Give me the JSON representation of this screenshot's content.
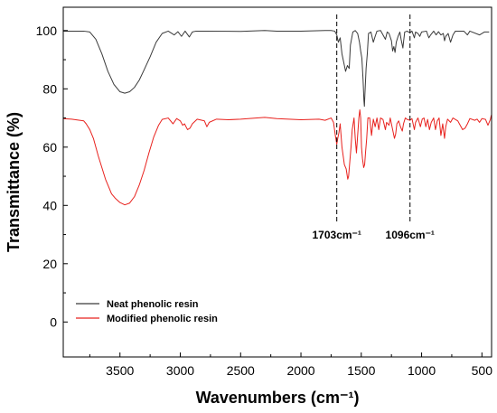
{
  "chart_data": {
    "type": "line",
    "xlabel": "Wavenumbers (cm⁻¹)",
    "ylabel": "Transmittance (%)",
    "xlim": [
      3970,
      420
    ],
    "ylim": [
      -12,
      108
    ],
    "x_reversed": true,
    "grid": false,
    "legend_position": "bottom-left",
    "x_ticks": [
      3500,
      3000,
      2500,
      2000,
      1500,
      1000,
      500
    ],
    "y_ticks": [
      0,
      20,
      40,
      60,
      80,
      100
    ],
    "x_tick_labels": [
      "3500",
      "3000",
      "2500",
      "2000",
      "1500",
      "1000",
      "500"
    ],
    "y_tick_labels": [
      "0",
      "20",
      "40",
      "60",
      "80",
      "100"
    ],
    "annotations": [
      {
        "x": 1703,
        "label": "1703cm⁻¹"
      },
      {
        "x": 1096,
        "label": "1096cm⁻¹"
      }
    ],
    "series": [
      {
        "name": "Neat phenolic resin",
        "color": "#3a3a3a",
        "points": [
          [
            3970,
            99.8
          ],
          [
            3800,
            99.8
          ],
          [
            3750,
            99.5
          ],
          [
            3700,
            97
          ],
          [
            3650,
            92
          ],
          [
            3600,
            86
          ],
          [
            3550,
            81.5
          ],
          [
            3500,
            79
          ],
          [
            3460,
            78.5
          ],
          [
            3420,
            79
          ],
          [
            3380,
            80.5
          ],
          [
            3340,
            83
          ],
          [
            3300,
            86.5
          ],
          [
            3250,
            91
          ],
          [
            3200,
            96
          ],
          [
            3150,
            99
          ],
          [
            3100,
            99.8
          ],
          [
            3050,
            98.5
          ],
          [
            3020,
            99.6
          ],
          [
            2990,
            98
          ],
          [
            2960,
            99.8
          ],
          [
            2925,
            97.8
          ],
          [
            2900,
            99.5
          ],
          [
            2870,
            99.8
          ],
          [
            2800,
            99.8
          ],
          [
            2500,
            99.7
          ],
          [
            2300,
            100
          ],
          [
            2200,
            99.8
          ],
          [
            2000,
            99.8
          ],
          [
            1800,
            100
          ],
          [
            1750,
            100
          ],
          [
            1720,
            99.8
          ],
          [
            1703,
            98.5
          ],
          [
            1690,
            96
          ],
          [
            1675,
            97.5
          ],
          [
            1660,
            92
          ],
          [
            1645,
            89
          ],
          [
            1630,
            86
          ],
          [
            1615,
            88
          ],
          [
            1600,
            87
          ],
          [
            1590,
            95
          ],
          [
            1570,
            99.5
          ],
          [
            1550,
            100
          ],
          [
            1530,
            99
          ],
          [
            1515,
            96
          ],
          [
            1505,
            93
          ],
          [
            1495,
            90.5
          ],
          [
            1485,
            83
          ],
          [
            1478,
            76
          ],
          [
            1474,
            74
          ],
          [
            1470,
            78
          ],
          [
            1460,
            87
          ],
          [
            1450,
            92
          ],
          [
            1440,
            99
          ],
          [
            1420,
            99.5
          ],
          [
            1400,
            96
          ],
          [
            1385,
            98
          ],
          [
            1370,
            99.8
          ],
          [
            1340,
            100
          ],
          [
            1300,
            97
          ],
          [
            1285,
            99.5
          ],
          [
            1270,
            99
          ],
          [
            1250,
            96.5
          ],
          [
            1240,
            93
          ],
          [
            1230,
            94.5
          ],
          [
            1220,
            92.5
          ],
          [
            1210,
            96
          ],
          [
            1195,
            98
          ],
          [
            1180,
            99.5
          ],
          [
            1170,
            97
          ],
          [
            1155,
            94
          ],
          [
            1150,
            96
          ],
          [
            1140,
            99.5
          ],
          [
            1120,
            99.8
          ],
          [
            1110,
            99.5
          ],
          [
            1096,
            99.3
          ],
          [
            1080,
            99.8
          ],
          [
            1060,
            97.5
          ],
          [
            1050,
            99.5
          ],
          [
            1030,
            99
          ],
          [
            1015,
            98
          ],
          [
            1000,
            99.5
          ],
          [
            960,
            99.8
          ],
          [
            940,
            97.5
          ],
          [
            925,
            98.5
          ],
          [
            900,
            99.8
          ],
          [
            880,
            98.5
          ],
          [
            860,
            99.6
          ],
          [
            840,
            98.5
          ],
          [
            820,
            99
          ],
          [
            810,
            96.5
          ],
          [
            800,
            98
          ],
          [
            780,
            99
          ],
          [
            760,
            96
          ],
          [
            740,
            98.5
          ],
          [
            720,
            99.8
          ],
          [
            650,
            99.8
          ],
          [
            620,
            98.5
          ],
          [
            600,
            99.8
          ],
          [
            520,
            98.5
          ],
          [
            480,
            99.5
          ],
          [
            440,
            99.5
          ]
        ]
      },
      {
        "name": "Modified phenolic resin",
        "color": "#e8211d",
        "points": [
          [
            3970,
            69.8
          ],
          [
            3900,
            69.6
          ],
          [
            3800,
            69
          ],
          [
            3780,
            68
          ],
          [
            3750,
            66
          ],
          [
            3720,
            63
          ],
          [
            3700,
            60
          ],
          [
            3680,
            57
          ],
          [
            3650,
            53
          ],
          [
            3620,
            49
          ],
          [
            3600,
            47
          ],
          [
            3570,
            44
          ],
          [
            3540,
            42.5
          ],
          [
            3500,
            41
          ],
          [
            3460,
            40.2
          ],
          [
            3420,
            40.8
          ],
          [
            3380,
            43
          ],
          [
            3340,
            47
          ],
          [
            3300,
            52
          ],
          [
            3260,
            58
          ],
          [
            3220,
            63.5
          ],
          [
            3180,
            67.5
          ],
          [
            3150,
            69.5
          ],
          [
            3100,
            70
          ],
          [
            3060,
            68
          ],
          [
            3030,
            69.8
          ],
          [
            3000,
            69
          ],
          [
            2980,
            67.5
          ],
          [
            2965,
            68
          ],
          [
            2940,
            66
          ],
          [
            2920,
            66.5
          ],
          [
            2900,
            68
          ],
          [
            2860,
            69.6
          ],
          [
            2800,
            69
          ],
          [
            2780,
            67
          ],
          [
            2760,
            68.5
          ],
          [
            2700,
            69.6
          ],
          [
            2600,
            69.4
          ],
          [
            2500,
            69.6
          ],
          [
            2300,
            70.2
          ],
          [
            2200,
            69.8
          ],
          [
            2000,
            69.4
          ],
          [
            1850,
            69.6
          ],
          [
            1800,
            69.2
          ],
          [
            1750,
            70
          ],
          [
            1730,
            68.5
          ],
          [
            1715,
            64
          ],
          [
            1703,
            61
          ],
          [
            1695,
            63
          ],
          [
            1685,
            65
          ],
          [
            1675,
            68
          ],
          [
            1660,
            60
          ],
          [
            1650,
            57
          ],
          [
            1640,
            54
          ],
          [
            1625,
            52.5
          ],
          [
            1612,
            49
          ],
          [
            1605,
            50
          ],
          [
            1595,
            55
          ],
          [
            1585,
            60
          ],
          [
            1575,
            66
          ],
          [
            1560,
            70
          ],
          [
            1550,
            63
          ],
          [
            1540,
            58
          ],
          [
            1530,
            64
          ],
          [
            1520,
            70
          ],
          [
            1512,
            72.8
          ],
          [
            1505,
            70
          ],
          [
            1498,
            60
          ],
          [
            1490,
            56
          ],
          [
            1480,
            53
          ],
          [
            1472,
            54
          ],
          [
            1465,
            58
          ],
          [
            1455,
            63
          ],
          [
            1445,
            70
          ],
          [
            1430,
            70
          ],
          [
            1415,
            64
          ],
          [
            1400,
            69.6
          ],
          [
            1385,
            67
          ],
          [
            1370,
            70
          ],
          [
            1355,
            66
          ],
          [
            1340,
            70
          ],
          [
            1320,
            69.5
          ],
          [
            1300,
            66
          ],
          [
            1290,
            68.5
          ],
          [
            1270,
            67.5
          ],
          [
            1260,
            70
          ],
          [
            1240,
            66
          ],
          [
            1225,
            63
          ],
          [
            1215,
            64.5
          ],
          [
            1205,
            68
          ],
          [
            1190,
            69
          ],
          [
            1175,
            67
          ],
          [
            1160,
            65.5
          ],
          [
            1150,
            68
          ],
          [
            1135,
            70
          ],
          [
            1120,
            69.5
          ],
          [
            1096,
            69.2
          ],
          [
            1080,
            69.8
          ],
          [
            1060,
            66
          ],
          [
            1050,
            68.5
          ],
          [
            1030,
            70
          ],
          [
            1010,
            67
          ],
          [
            995,
            69.6
          ],
          [
            980,
            70
          ],
          [
            965,
            67
          ],
          [
            950,
            69.5
          ],
          [
            935,
            66
          ],
          [
            920,
            68.5
          ],
          [
            900,
            70
          ],
          [
            885,
            66
          ],
          [
            870,
            69
          ],
          [
            855,
            70
          ],
          [
            840,
            64
          ],
          [
            825,
            68
          ],
          [
            810,
            63
          ],
          [
            800,
            67
          ],
          [
            785,
            69.6
          ],
          [
            760,
            68.5
          ],
          [
            740,
            70
          ],
          [
            700,
            69
          ],
          [
            680,
            67.5
          ],
          [
            660,
            66
          ],
          [
            640,
            66.5
          ],
          [
            620,
            68
          ],
          [
            600,
            69.8
          ],
          [
            560,
            69.2
          ],
          [
            540,
            69.6
          ],
          [
            520,
            68.5
          ],
          [
            500,
            69.8
          ],
          [
            470,
            69.5
          ],
          [
            450,
            67.5
          ],
          [
            430,
            69.5
          ],
          [
            422,
            71
          ]
        ]
      }
    ]
  }
}
